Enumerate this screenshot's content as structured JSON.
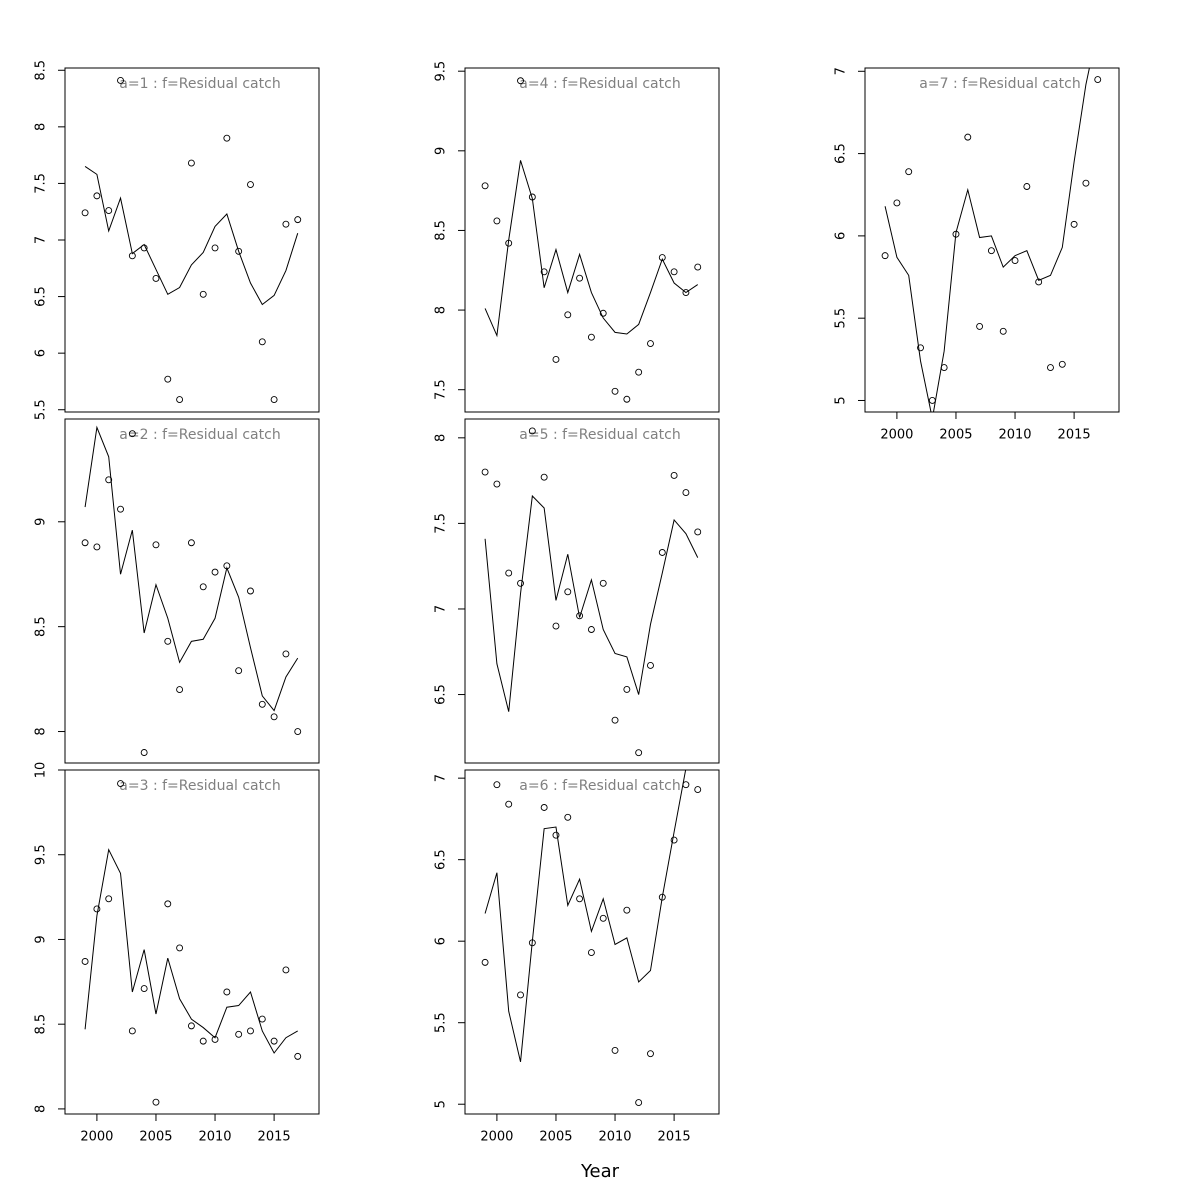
{
  "xlabel": "Year",
  "chart_data": [
    {
      "type": "scatter",
      "title": "a=1 : f=Residual catch",
      "x": [
        1999,
        2000,
        2001,
        2002,
        2003,
        2004,
        2005,
        2006,
        2007,
        2008,
        2009,
        2010,
        2011,
        2012,
        2013,
        2014,
        2015,
        2016,
        2017
      ],
      "points": [
        7.24,
        7.39,
        7.26,
        8.41,
        6.86,
        6.93,
        6.66,
        5.77,
        5.59,
        7.68,
        6.52,
        6.93,
        7.9,
        6.9,
        7.49,
        6.1,
        5.59,
        7.14,
        7.18
      ],
      "line": [
        7.65,
        7.58,
        7.08,
        7.37,
        6.88,
        6.96,
        6.74,
        6.52,
        6.58,
        6.78,
        6.89,
        7.12,
        7.23,
        6.9,
        6.62,
        6.43,
        6.51,
        6.73,
        7.06
      ],
      "xlim": [
        1997.3,
        2018.8
      ],
      "ylim": [
        5.48,
        8.52
      ],
      "yticks": [
        5.5,
        6.0,
        6.5,
        7.0,
        7.5,
        8.0,
        8.5
      ]
    },
    {
      "type": "scatter",
      "title": "a=2 : f=Residual catch",
      "x": [
        1999,
        2000,
        2001,
        2002,
        2003,
        2004,
        2005,
        2006,
        2007,
        2008,
        2009,
        2010,
        2011,
        2012,
        2013,
        2014,
        2015,
        2016,
        2017
      ],
      "points": [
        8.9,
        8.88,
        9.2,
        9.06,
        9.42,
        7.9,
        8.89,
        8.43,
        8.2,
        8.9,
        8.69,
        8.76,
        8.79,
        8.29,
        8.67,
        8.13,
        8.07,
        8.37,
        8.0
      ],
      "line": [
        9.07,
        9.45,
        9.31,
        8.75,
        8.96,
        8.47,
        8.7,
        8.54,
        8.33,
        8.43,
        8.44,
        8.54,
        8.78,
        8.64,
        8.4,
        8.17,
        8.1,
        8.26,
        8.35
      ],
      "xlim": [
        1997.3,
        2018.8
      ],
      "ylim": [
        7.85,
        9.49
      ],
      "yticks": [
        8.0,
        8.5,
        9.0
      ]
    },
    {
      "type": "scatter",
      "title": "a=3 : f=Residual catch",
      "x": [
        1999,
        2000,
        2001,
        2002,
        2003,
        2004,
        2005,
        2006,
        2007,
        2008,
        2009,
        2010,
        2011,
        2012,
        2013,
        2014,
        2015,
        2016,
        2017
      ],
      "points": [
        8.87,
        9.18,
        9.24,
        9.92,
        8.46,
        8.71,
        8.04,
        9.21,
        8.95,
        8.49,
        8.4,
        8.41,
        8.69,
        8.44,
        8.46,
        8.53,
        8.4,
        8.82,
        8.31
      ],
      "line": [
        8.47,
        9.14,
        9.53,
        9.39,
        8.69,
        8.94,
        8.56,
        8.89,
        8.65,
        8.53,
        8.48,
        8.42,
        8.6,
        8.61,
        8.69,
        8.46,
        8.33,
        8.42,
        8.46
      ],
      "xlim": [
        1997.3,
        2018.8
      ],
      "xticks": [
        2000,
        2005,
        2010,
        2015
      ],
      "ylim": [
        7.97,
        10.0
      ],
      "yticks": [
        8.0,
        8.5,
        9.0,
        9.5,
        10.0
      ]
    },
    {
      "type": "scatter",
      "title": "a=4 : f=Residual catch",
      "x": [
        1999,
        2000,
        2001,
        2002,
        2003,
        2004,
        2005,
        2006,
        2007,
        2008,
        2009,
        2010,
        2011,
        2012,
        2013,
        2014,
        2015,
        2016,
        2017
      ],
      "points": [
        8.78,
        8.56,
        8.42,
        9.44,
        8.71,
        8.24,
        7.69,
        7.97,
        8.2,
        7.83,
        7.98,
        7.49,
        7.44,
        7.61,
        7.79,
        8.33,
        8.24,
        8.11,
        8.27
      ],
      "line": [
        8.01,
        7.84,
        8.44,
        8.94,
        8.7,
        8.14,
        8.38,
        8.11,
        8.35,
        8.11,
        7.95,
        7.86,
        7.85,
        7.91,
        8.11,
        8.32,
        8.17,
        8.11,
        8.16
      ],
      "xlim": [
        1997.3,
        2018.8
      ],
      "ylim": [
        7.36,
        9.52
      ],
      "yticks": [
        7.5,
        8.0,
        8.5,
        9.0,
        9.5
      ]
    },
    {
      "type": "scatter",
      "title": "a=5 : f=Residual catch",
      "x": [
        1999,
        2000,
        2001,
        2002,
        2003,
        2004,
        2005,
        2006,
        2007,
        2008,
        2009,
        2010,
        2011,
        2012,
        2013,
        2014,
        2015,
        2016,
        2017
      ],
      "points": [
        7.8,
        7.73,
        7.21,
        7.15,
        8.04,
        7.77,
        6.9,
        7.1,
        6.96,
        6.88,
        7.15,
        6.35,
        6.53,
        6.16,
        6.67,
        7.33,
        7.78,
        7.68,
        7.45
      ],
      "line": [
        7.41,
        6.68,
        6.4,
        7.09,
        7.66,
        7.59,
        7.05,
        7.32,
        6.95,
        7.17,
        6.88,
        6.74,
        6.72,
        6.5,
        6.91,
        7.21,
        7.52,
        7.44,
        7.3
      ],
      "xlim": [
        1997.3,
        2018.8
      ],
      "ylim": [
        6.1,
        8.11
      ],
      "yticks": [
        6.5,
        7.0,
        7.5,
        8.0
      ]
    },
    {
      "type": "scatter",
      "title": "a=6 : f=Residual catch",
      "x": [
        1999,
        2000,
        2001,
        2002,
        2003,
        2004,
        2005,
        2006,
        2007,
        2008,
        2009,
        2010,
        2011,
        2012,
        2013,
        2014,
        2015,
        2016,
        2017
      ],
      "points": [
        5.87,
        6.96,
        6.84,
        5.67,
        5.99,
        6.82,
        6.65,
        6.76,
        6.26,
        5.93,
        6.14,
        5.33,
        6.19,
        5.01,
        5.31,
        6.27,
        6.62,
        6.96,
        6.93
      ],
      "line": [
        6.17,
        6.42,
        5.57,
        5.26,
        6.0,
        6.69,
        6.7,
        6.22,
        6.38,
        6.06,
        6.26,
        5.98,
        6.02,
        5.75,
        5.82,
        6.27,
        6.67,
        7.06,
        7.08
      ],
      "xlim": [
        1997.3,
        2018.8
      ],
      "xticks": [
        2000,
        2005,
        2010,
        2015
      ],
      "ylim": [
        4.94,
        7.05
      ],
      "yticks": [
        5.0,
        5.5,
        6.0,
        6.5,
        7.0
      ]
    },
    {
      "type": "scatter",
      "title": "a=7 : f=Residual catch",
      "x": [
        1999,
        2000,
        2001,
        2002,
        2003,
        2004,
        2005,
        2006,
        2007,
        2008,
        2009,
        2010,
        2011,
        2012,
        2013,
        2014,
        2015,
        2016,
        2017
      ],
      "points": [
        5.88,
        6.2,
        6.39,
        5.32,
        5.0,
        5.2,
        6.01,
        6.6,
        5.45,
        5.91,
        5.42,
        5.85,
        6.3,
        5.72,
        5.2,
        5.22,
        6.07,
        6.32,
        6.95
      ],
      "line": [
        6.18,
        5.87,
        5.76,
        5.24,
        4.89,
        5.3,
        6.02,
        6.28,
        5.99,
        6.0,
        5.81,
        5.88,
        5.91,
        5.73,
        5.76,
        5.93,
        6.45,
        6.92,
        7.26
      ],
      "xlim": [
        1997.3,
        2018.8
      ],
      "xticks": [
        2000,
        2005,
        2010,
        2015
      ],
      "ylim": [
        4.93,
        7.02
      ],
      "yticks": [
        5.0,
        5.5,
        6.0,
        6.5,
        7.0
      ]
    }
  ]
}
